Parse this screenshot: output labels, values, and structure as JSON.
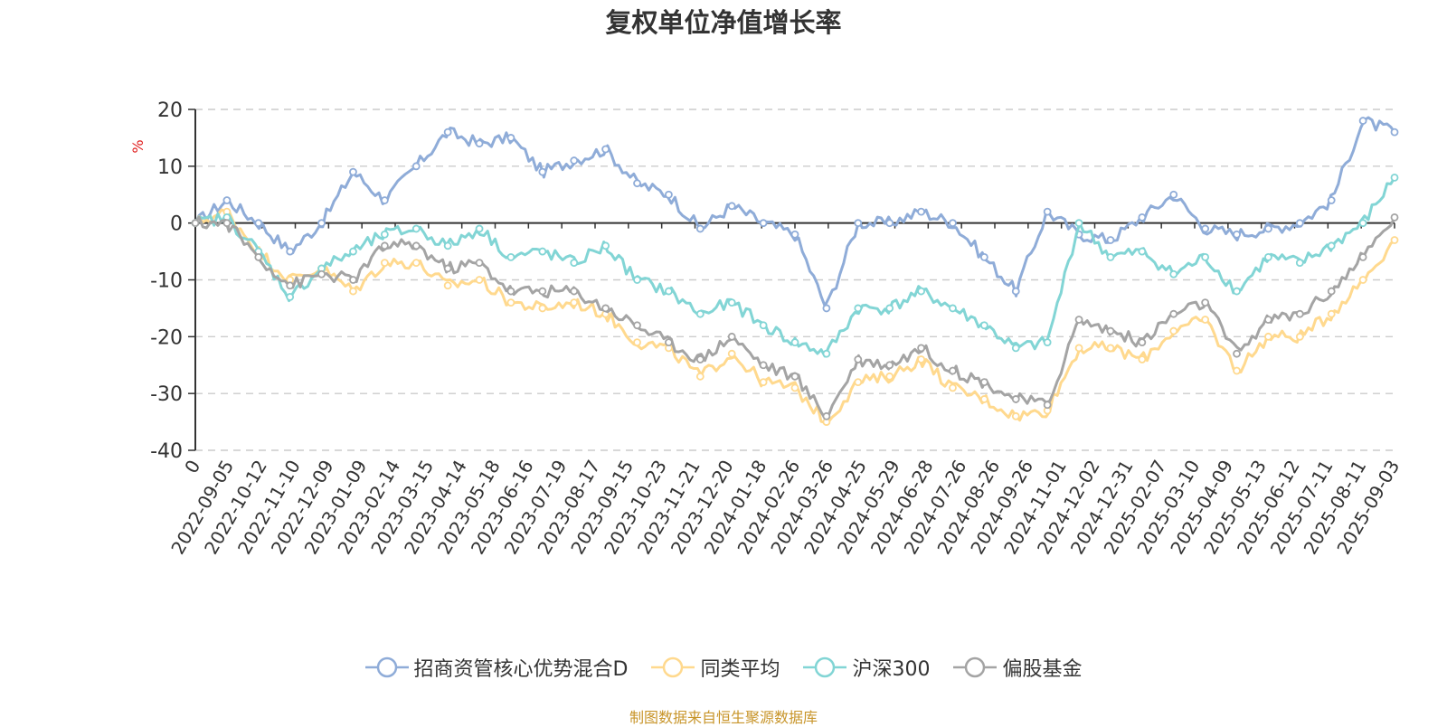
{
  "title": "复权单位净值增长率",
  "source_note": "制图数据来自恒生聚源数据库",
  "chart_data": {
    "type": "line",
    "title": "复权单位净值增长率",
    "ylabel": "%",
    "ylim": [
      -40,
      20
    ],
    "yticks": [
      -40,
      -30,
      -20,
      -10,
      0,
      10,
      20
    ],
    "x_tick_labels": [
      "0",
      "2022-09-05",
      "2022-10-12",
      "2022-11-10",
      "2022-12-09",
      "2023-01-09",
      "2023-02-14",
      "2023-03-15",
      "2023-04-14",
      "2023-05-18",
      "2023-06-16",
      "2023-07-19",
      "2023-08-17",
      "2023-09-15",
      "2023-10-23",
      "2023-11-21",
      "2023-12-20",
      "2024-01-18",
      "2024-02-26",
      "2024-03-26",
      "2024-04-25",
      "2024-05-29",
      "2024-06-28",
      "2024-07-26",
      "2024-08-26",
      "2024-09-26",
      "2024-11-01",
      "2024-12-02",
      "2024-12-31",
      "2025-02-07",
      "2025-03-10",
      "2025-04-09",
      "2025-05-13",
      "2025-06-12",
      "2025-07-11",
      "2025-08-11",
      "2025-09-03"
    ],
    "grid": true,
    "legend_position": "bottom",
    "series": [
      {
        "name": "招商资管核心优势混合D",
        "color": "#8facd8",
        "values": [
          0,
          4,
          0,
          -5,
          0,
          9,
          4,
          10,
          16,
          14,
          15,
          9,
          11,
          13,
          7,
          5,
          -1,
          3,
          0,
          -2,
          -15,
          0,
          0,
          2,
          0,
          -6,
          -12,
          2,
          -2,
          -3,
          1,
          5,
          -1,
          -2,
          -1,
          0,
          4,
          18,
          16
        ]
      },
      {
        "name": "同类平均",
        "color": "#ffd98e",
        "values": [
          0,
          2,
          -5,
          -10,
          -8,
          -12,
          -7,
          -7,
          -11,
          -10,
          -14,
          -15,
          -14,
          -16,
          -21,
          -22,
          -27,
          -23,
          -28,
          -29,
          -35,
          -28,
          -27,
          -24,
          -29,
          -31,
          -34,
          -33,
          -22,
          -22,
          -24,
          -19,
          -17,
          -26,
          -20,
          -20,
          -16,
          -10,
          -3
        ]
      },
      {
        "name": "沪深300",
        "color": "#82d5d5",
        "values": [
          0,
          1,
          -5,
          -13,
          -8,
          -5,
          -2,
          -1,
          -4,
          -1,
          -6,
          -5,
          -7,
          -4,
          -10,
          -12,
          -16,
          -14,
          -18,
          -21,
          -23,
          -15,
          -15,
          -12,
          -15,
          -18,
          -22,
          -21,
          0,
          -6,
          -5,
          -9,
          -6,
          -12,
          -6,
          -7,
          -4,
          0,
          8
        ]
      },
      {
        "name": "偏股基金",
        "color": "#a4a4a4",
        "values": [
          0,
          0,
          -6,
          -11,
          -9,
          -10,
          -4,
          -4,
          -8,
          -7,
          -12,
          -12,
          -12,
          -15,
          -18,
          -21,
          -24,
          -20,
          -25,
          -27,
          -34,
          -24,
          -25,
          -22,
          -26,
          -28,
          -31,
          -32,
          -17,
          -19,
          -21,
          -16,
          -14,
          -23,
          -17,
          -16,
          -12,
          -6,
          1
        ]
      }
    ]
  }
}
